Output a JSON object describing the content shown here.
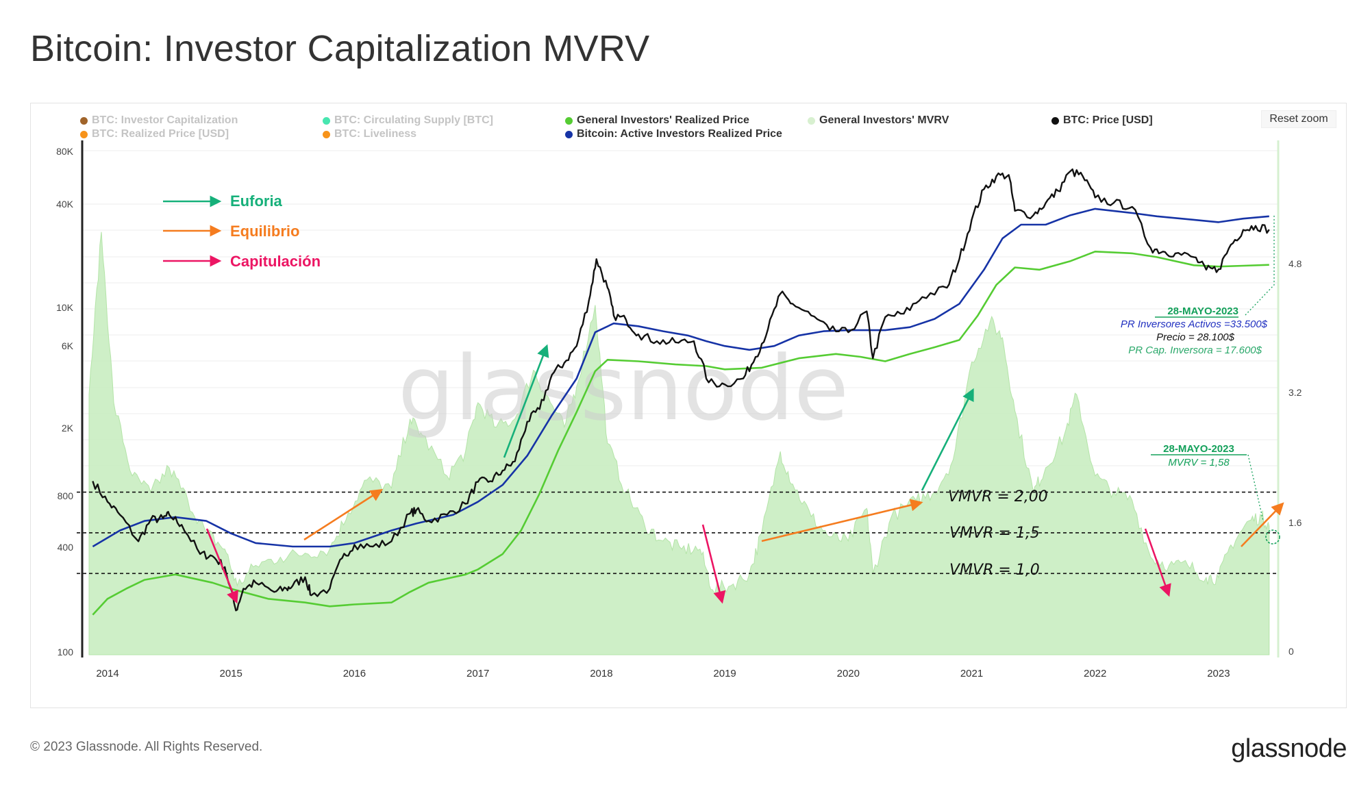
{
  "page": {
    "title": "Bitcoin: Investor Capitalization MVRV",
    "reset_zoom": "Reset zoom",
    "footer": "© 2023 Glassnode. All Rights Reserved.",
    "logo": "glassnode",
    "watermark": "glassnode"
  },
  "legend": [
    {
      "label": "BTC: Investor Capitalization",
      "color": "#a0642a",
      "active": false
    },
    {
      "label": "BTC: Realized Price [USD]",
      "color": "#f7931a",
      "active": false
    },
    {
      "label": "BTC: Circulating Supply [BTC]",
      "color": "#48e6b0",
      "active": false
    },
    {
      "label": "BTC: Liveliness",
      "color": "#f7931a",
      "active": false
    },
    {
      "label": "General Investors' Realized Price",
      "color": "#55cc33",
      "active": true
    },
    {
      "label": "Bitcoin: Active Investors Realized Price",
      "color": "#1633a6",
      "active": true
    },
    {
      "label": "General Investors' MVRV",
      "color": "#d8f0d0",
      "active": true
    },
    {
      "label": "BTC: Price [USD]",
      "color": "#111111",
      "active": true
    }
  ],
  "annotations": {
    "key": [
      {
        "label": "Euforia",
        "color": "#16b07a"
      },
      {
        "label": "Equilibrio",
        "color": "#f57c1f"
      },
      {
        "label": "Capitulación",
        "color": "#ec1563"
      }
    ],
    "levels": [
      {
        "label": "VMVR = 2,00",
        "mvrv": 2.0
      },
      {
        "label": "VMVR = 1,5",
        "mvrv": 1.5
      },
      {
        "label": "VMVR = 1,0",
        "mvrv": 1.0
      }
    ],
    "box1": {
      "date": "28-MAYO-2023",
      "active": "PR Inversores Activos =33.500$",
      "price": "Precio = 28.100$",
      "investor": "PR Cap. Inversora = 17.600$"
    },
    "box2": {
      "date": "28-MAYO-2023",
      "mvrv": "MVRV = 1,58"
    },
    "colors": {
      "date": "#13a05a",
      "active": "#2030c0",
      "price": "#111111",
      "investor": "#2aa86a"
    }
  },
  "chart_data": {
    "type": "line",
    "title": "Bitcoin: Investor Capitalization MVRV",
    "x_range": [
      2013.85,
      2023.45
    ],
    "x_ticks": [
      "2014",
      "2015",
      "2016",
      "2017",
      "2018",
      "2019",
      "2020",
      "2021",
      "2022",
      "2023"
    ],
    "y_left": {
      "scale": "log",
      "range": [
        100,
        80000
      ],
      "ticks": [
        "100",
        "400",
        "800",
        "2K",
        "6K",
        "10K",
        "40K",
        "80K"
      ]
    },
    "y_right": {
      "scale": "linear",
      "range": [
        0,
        6.2
      ],
      "ticks": [
        "0",
        "1.6",
        "3.2",
        "4.8"
      ]
    },
    "series": [
      {
        "name": "BTC: Price [USD]",
        "color": "#111111",
        "axis": "left",
        "points": [
          [
            2013.88,
            1000
          ],
          [
            2014.0,
            760
          ],
          [
            2014.1,
            640
          ],
          [
            2014.25,
            450
          ],
          [
            2014.35,
            600
          ],
          [
            2014.45,
            610
          ],
          [
            2014.5,
            640
          ],
          [
            2014.6,
            560
          ],
          [
            2014.75,
            380
          ],
          [
            2014.85,
            370
          ],
          [
            2014.95,
            320
          ],
          [
            2015.04,
            180
          ],
          [
            2015.1,
            240
          ],
          [
            2015.2,
            260
          ],
          [
            2015.35,
            230
          ],
          [
            2015.45,
            240
          ],
          [
            2015.5,
            250
          ],
          [
            2015.6,
            280
          ],
          [
            2015.65,
            220
          ],
          [
            2015.8,
            240
          ],
          [
            2015.9,
            360
          ],
          [
            2016.0,
            430
          ],
          [
            2016.15,
            420
          ],
          [
            2016.3,
            450
          ],
          [
            2016.45,
            650
          ],
          [
            2016.5,
            680
          ],
          [
            2016.6,
            590
          ],
          [
            2016.75,
            640
          ],
          [
            2016.9,
            740
          ],
          [
            2017.0,
            990
          ],
          [
            2017.1,
            1000
          ],
          [
            2017.2,
            1150
          ],
          [
            2017.3,
            1300
          ],
          [
            2017.4,
            2200
          ],
          [
            2017.5,
            2600
          ],
          [
            2017.6,
            4100
          ],
          [
            2017.7,
            4800
          ],
          [
            2017.8,
            6000
          ],
          [
            2017.9,
            11000
          ],
          [
            2017.96,
            19000
          ],
          [
            2018.05,
            13000
          ],
          [
            2018.1,
            9000
          ],
          [
            2018.2,
            8500
          ],
          [
            2018.3,
            7000
          ],
          [
            2018.45,
            6400
          ],
          [
            2018.6,
            6300
          ],
          [
            2018.75,
            6400
          ],
          [
            2018.87,
            3700
          ],
          [
            2019.0,
            3600
          ],
          [
            2019.15,
            3900
          ],
          [
            2019.25,
            5200
          ],
          [
            2019.35,
            7500
          ],
          [
            2019.45,
            12000
          ],
          [
            2019.55,
            10500
          ],
          [
            2019.7,
            9000
          ],
          [
            2019.85,
            7400
          ],
          [
            2020.0,
            7200
          ],
          [
            2020.15,
            9500
          ],
          [
            2020.2,
            5100
          ],
          [
            2020.3,
            8800
          ],
          [
            2020.45,
            9200
          ],
          [
            2020.6,
            11500
          ],
          [
            2020.8,
            13000
          ],
          [
            2020.9,
            19000
          ],
          [
            2021.0,
            32000
          ],
          [
            2021.1,
            48000
          ],
          [
            2021.2,
            57000
          ],
          [
            2021.3,
            58000
          ],
          [
            2021.35,
            36000
          ],
          [
            2021.5,
            34000
          ],
          [
            2021.6,
            40000
          ],
          [
            2021.7,
            47000
          ],
          [
            2021.8,
            61000
          ],
          [
            2021.9,
            57000
          ],
          [
            2022.0,
            43000
          ],
          [
            2022.15,
            40000
          ],
          [
            2022.3,
            38000
          ],
          [
            2022.45,
            22000
          ],
          [
            2022.55,
            21000
          ],
          [
            2022.65,
            20500
          ],
          [
            2022.8,
            19500
          ],
          [
            2022.9,
            16500
          ],
          [
            2023.0,
            16600
          ],
          [
            2023.1,
            23000
          ],
          [
            2023.2,
            28000
          ],
          [
            2023.3,
            29500
          ],
          [
            2023.41,
            28100
          ]
        ]
      },
      {
        "name": "Bitcoin: Active Investors Realized Price",
        "color": "#1633a6",
        "axis": "left",
        "points": [
          [
            2013.88,
            420
          ],
          [
            2014.1,
            520
          ],
          [
            2014.3,
            590
          ],
          [
            2014.55,
            620
          ],
          [
            2014.8,
            590
          ],
          [
            2015.0,
            500
          ],
          [
            2015.2,
            440
          ],
          [
            2015.5,
            420
          ],
          [
            2015.8,
            420
          ],
          [
            2016.0,
            440
          ],
          [
            2016.3,
            520
          ],
          [
            2016.5,
            570
          ],
          [
            2016.8,
            640
          ],
          [
            2017.0,
            760
          ],
          [
            2017.2,
            950
          ],
          [
            2017.4,
            1400
          ],
          [
            2017.6,
            2400
          ],
          [
            2017.8,
            3900
          ],
          [
            2017.95,
            7200
          ],
          [
            2018.1,
            8100
          ],
          [
            2018.3,
            7800
          ],
          [
            2018.5,
            7300
          ],
          [
            2018.7,
            6900
          ],
          [
            2018.85,
            6400
          ],
          [
            2019.0,
            6000
          ],
          [
            2019.2,
            5700
          ],
          [
            2019.4,
            6000
          ],
          [
            2019.6,
            6900
          ],
          [
            2019.8,
            7300
          ],
          [
            2020.0,
            7400
          ],
          [
            2020.3,
            7400
          ],
          [
            2020.5,
            7700
          ],
          [
            2020.7,
            8600
          ],
          [
            2020.9,
            10500
          ],
          [
            2021.1,
            16500
          ],
          [
            2021.25,
            25000
          ],
          [
            2021.4,
            30000
          ],
          [
            2021.6,
            30000
          ],
          [
            2021.8,
            34000
          ],
          [
            2022.0,
            37000
          ],
          [
            2022.3,
            35000
          ],
          [
            2022.5,
            33500
          ],
          [
            2022.8,
            32000
          ],
          [
            2023.0,
            31000
          ],
          [
            2023.2,
            32500
          ],
          [
            2023.41,
            33500
          ]
        ]
      },
      {
        "name": "General Investors' Realized Price",
        "color": "#55cc33",
        "axis": "left",
        "points": [
          [
            2013.88,
            170
          ],
          [
            2014.0,
            210
          ],
          [
            2014.15,
            240
          ],
          [
            2014.3,
            270
          ],
          [
            2014.55,
            290
          ],
          [
            2014.85,
            260
          ],
          [
            2015.0,
            240
          ],
          [
            2015.3,
            210
          ],
          [
            2015.6,
            200
          ],
          [
            2015.8,
            190
          ],
          [
            2016.0,
            195
          ],
          [
            2016.3,
            200
          ],
          [
            2016.45,
            230
          ],
          [
            2016.6,
            260
          ],
          [
            2016.9,
            290
          ],
          [
            2017.0,
            310
          ],
          [
            2017.2,
            380
          ],
          [
            2017.35,
            520
          ],
          [
            2017.5,
            850
          ],
          [
            2017.65,
            1500
          ],
          [
            2017.8,
            2500
          ],
          [
            2017.95,
            4300
          ],
          [
            2018.05,
            5000
          ],
          [
            2018.3,
            4900
          ],
          [
            2018.6,
            4700
          ],
          [
            2018.85,
            4600
          ],
          [
            2019.0,
            4400
          ],
          [
            2019.3,
            4500
          ],
          [
            2019.6,
            5100
          ],
          [
            2019.9,
            5400
          ],
          [
            2020.1,
            5200
          ],
          [
            2020.3,
            4900
          ],
          [
            2020.5,
            5400
          ],
          [
            2020.7,
            5900
          ],
          [
            2020.9,
            6500
          ],
          [
            2021.05,
            9000
          ],
          [
            2021.2,
            13500
          ],
          [
            2021.35,
            17000
          ],
          [
            2021.55,
            16500
          ],
          [
            2021.8,
            18500
          ],
          [
            2022.0,
            21000
          ],
          [
            2022.3,
            20500
          ],
          [
            2022.5,
            19500
          ],
          [
            2022.8,
            17500
          ],
          [
            2023.0,
            17200
          ],
          [
            2023.2,
            17400
          ],
          [
            2023.41,
            17600
          ]
        ]
      },
      {
        "name": "General Investors' MVRV",
        "color": "#cfeec5",
        "axis": "right",
        "points": [
          [
            2013.85,
            3.2
          ],
          [
            2013.95,
            5.2
          ],
          [
            2014.05,
            3.1
          ],
          [
            2014.2,
            2.2
          ],
          [
            2014.35,
            2.0
          ],
          [
            2014.5,
            2.3
          ],
          [
            2014.65,
            1.9
          ],
          [
            2014.8,
            1.5
          ],
          [
            2014.95,
            1.3
          ],
          [
            2015.05,
            0.85
          ],
          [
            2015.2,
            1.1
          ],
          [
            2015.4,
            1.2
          ],
          [
            2015.6,
            1.25
          ],
          [
            2015.8,
            1.3
          ],
          [
            2015.95,
            1.75
          ],
          [
            2016.1,
            2.15
          ],
          [
            2016.3,
            2.05
          ],
          [
            2016.45,
            2.9
          ],
          [
            2016.55,
            2.7
          ],
          [
            2016.75,
            2.2
          ],
          [
            2016.9,
            2.5
          ],
          [
            2017.0,
            3.1
          ],
          [
            2017.15,
            2.8
          ],
          [
            2017.3,
            2.9
          ],
          [
            2017.45,
            3.5
          ],
          [
            2017.55,
            3.2
          ],
          [
            2017.7,
            2.8
          ],
          [
            2017.8,
            3.3
          ],
          [
            2017.95,
            4.3
          ],
          [
            2018.05,
            2.6
          ],
          [
            2018.2,
            2.0
          ],
          [
            2018.35,
            1.6
          ],
          [
            2018.5,
            1.4
          ],
          [
            2018.65,
            1.3
          ],
          [
            2018.8,
            1.3
          ],
          [
            2018.9,
            0.8
          ],
          [
            2019.05,
            0.85
          ],
          [
            2019.2,
            1.0
          ],
          [
            2019.3,
            1.5
          ],
          [
            2019.45,
            2.5
          ],
          [
            2019.55,
            2.1
          ],
          [
            2019.7,
            1.7
          ],
          [
            2019.85,
            1.45
          ],
          [
            2020.0,
            1.4
          ],
          [
            2020.15,
            1.8
          ],
          [
            2020.2,
            1.0
          ],
          [
            2020.35,
            1.7
          ],
          [
            2020.55,
            1.9
          ],
          [
            2020.7,
            2.0
          ],
          [
            2020.85,
            2.4
          ],
          [
            2021.0,
            3.6
          ],
          [
            2021.15,
            4.1
          ],
          [
            2021.25,
            3.9
          ],
          [
            2021.35,
            3.0
          ],
          [
            2021.5,
            2.0
          ],
          [
            2021.6,
            2.3
          ],
          [
            2021.75,
            2.7
          ],
          [
            2021.85,
            3.2
          ],
          [
            2022.0,
            2.2
          ],
          [
            2022.15,
            2.0
          ],
          [
            2022.3,
            1.9
          ],
          [
            2022.45,
            1.2
          ],
          [
            2022.6,
            1.1
          ],
          [
            2022.75,
            1.1
          ],
          [
            2022.9,
            0.95
          ],
          [
            2023.0,
            0.95
          ],
          [
            2023.1,
            1.35
          ],
          [
            2023.25,
            1.65
          ],
          [
            2023.35,
            1.7
          ],
          [
            2023.41,
            1.58
          ]
        ]
      }
    ]
  }
}
